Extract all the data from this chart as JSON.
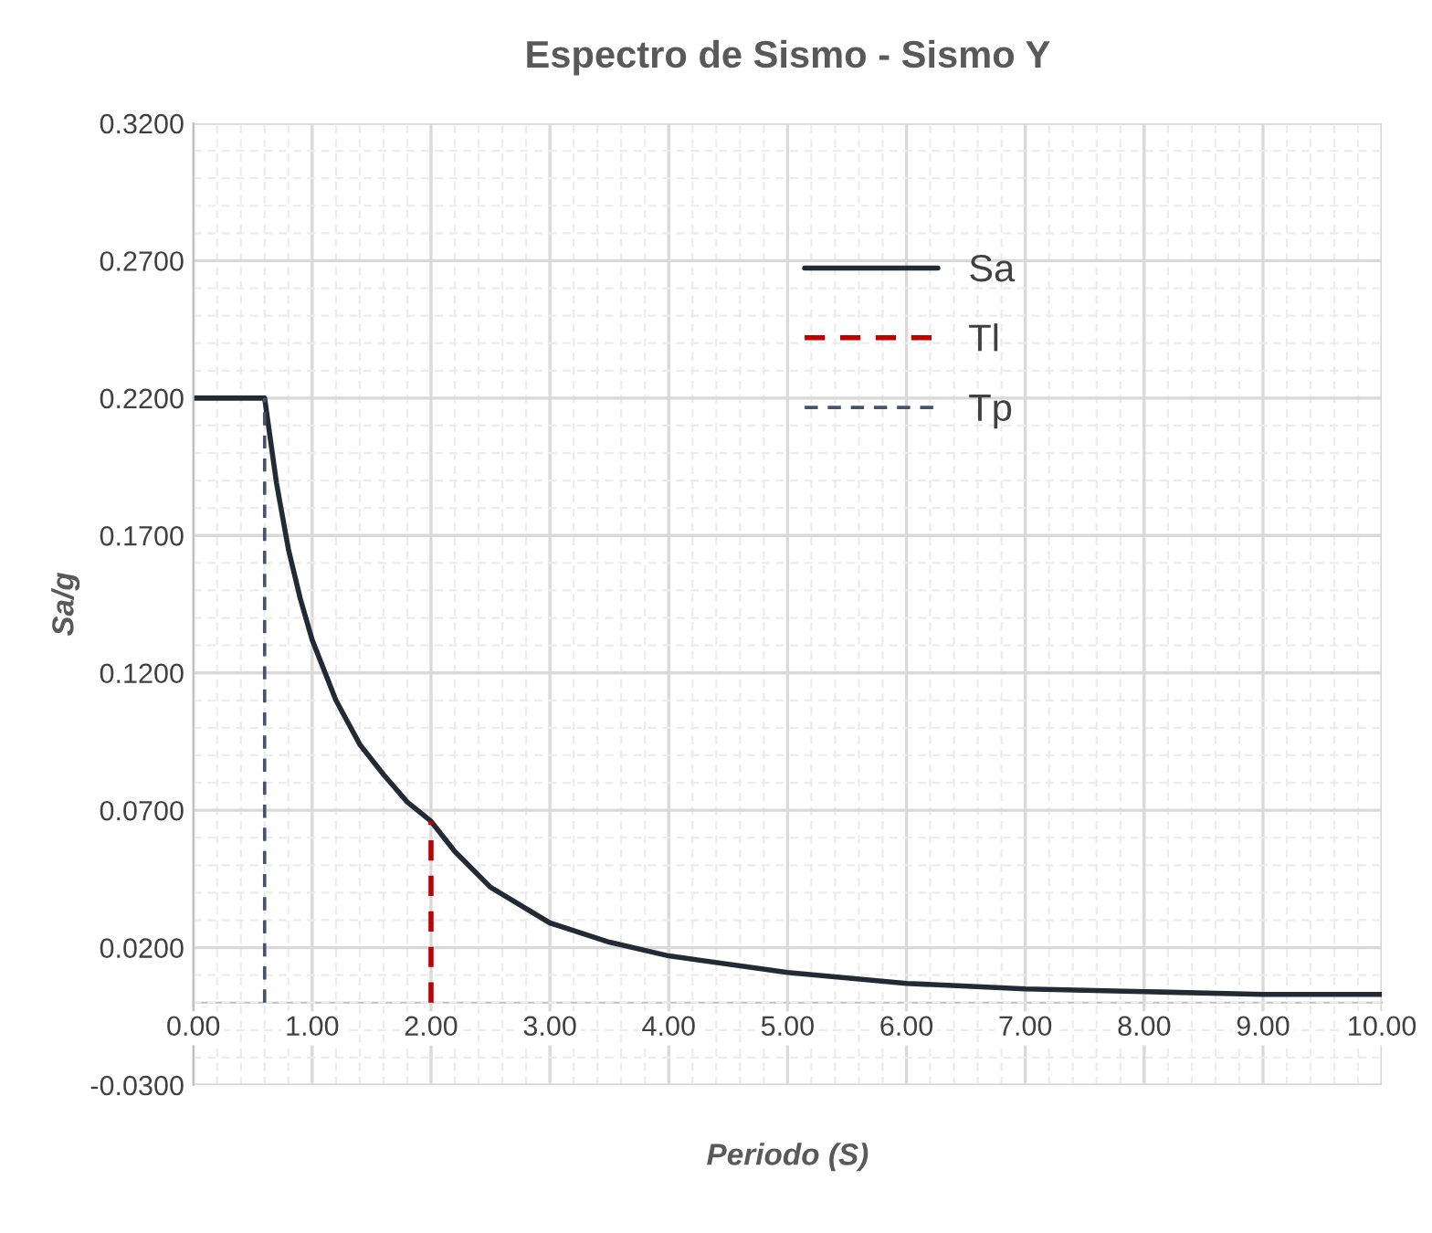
{
  "chart_data": {
    "type": "line",
    "title": "Espectro de Sismo - Sismo Y",
    "xlabel": "Periodo (S)",
    "ylabel": "Sa/g",
    "xlim": [
      0,
      10
    ],
    "xticks": [
      {
        "value": 0,
        "label": "0.00"
      },
      {
        "value": 1,
        "label": "1.00"
      },
      {
        "value": 2,
        "label": "2.00"
      },
      {
        "value": 3,
        "label": "3.00"
      },
      {
        "value": 4,
        "label": "4.00"
      },
      {
        "value": 5,
        "label": "5.00"
      },
      {
        "value": 6,
        "label": "6.00"
      },
      {
        "value": 7,
        "label": "7.00"
      },
      {
        "value": 8,
        "label": "8.00"
      },
      {
        "value": 9,
        "label": "9.00"
      },
      {
        "value": 10,
        "label": "10.00"
      }
    ],
    "ylim": [
      -0.03,
      0.32
    ],
    "yticks": [
      {
        "value": -0.03,
        "label": "-0.0300"
      },
      {
        "value": 0.02,
        "label": "0.0200"
      },
      {
        "value": 0.07,
        "label": "0.0700"
      },
      {
        "value": 0.12,
        "label": "0.1200"
      },
      {
        "value": 0.17,
        "label": "0.1700"
      },
      {
        "value": 0.22,
        "label": "0.2200"
      },
      {
        "value": 0.27,
        "label": "0.2700"
      },
      {
        "value": 0.32,
        "label": "0.3200"
      }
    ],
    "grid": true,
    "legend": "top right",
    "series": [
      {
        "name": "Sa",
        "color": "#222a35",
        "line_style": "solid",
        "x": [
          0,
          0.6,
          0.7,
          0.8,
          0.9,
          1.0,
          1.2,
          1.4,
          1.6,
          1.8,
          2.0,
          2.2,
          2.5,
          3.0,
          3.5,
          4.0,
          5.0,
          6.0,
          7.0,
          8.0,
          9.0,
          10.0
        ],
        "values": [
          0.22,
          0.22,
          0.189,
          0.165,
          0.147,
          0.132,
          0.11,
          0.094,
          0.083,
          0.073,
          0.066,
          0.055,
          0.042,
          0.029,
          0.022,
          0.017,
          0.011,
          0.007,
          0.005,
          0.004,
          0.003,
          0.003
        ]
      },
      {
        "name": "Tl",
        "color": "#c00000",
        "line_style": "dashed",
        "x": [
          2.0,
          2.0
        ],
        "values": [
          0,
          0.066
        ]
      },
      {
        "name": "Tp",
        "color": "#44546a",
        "line_style": "dashed",
        "x": [
          0.6,
          0.6
        ],
        "values": [
          0,
          0.22
        ]
      }
    ]
  }
}
